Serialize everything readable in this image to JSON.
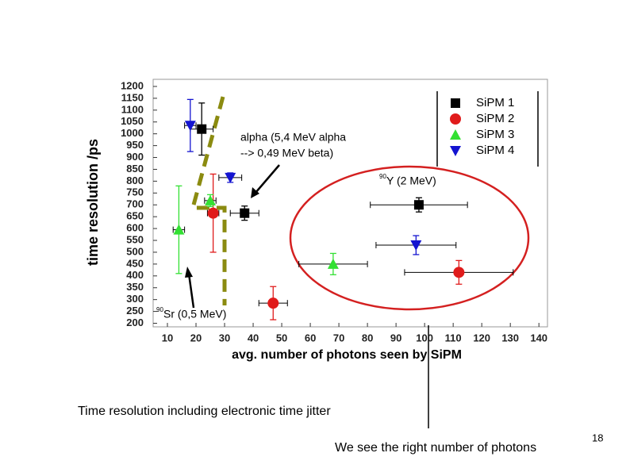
{
  "chart_data": {
    "type": "errorbar-scatter",
    "xlabel": "avg. number of photons seen by SiPM",
    "ylabel": "time resolution /ps",
    "xlim": [
      5,
      143
    ],
    "ylim": [
      185,
      1230
    ],
    "xticks": [
      10,
      20,
      30,
      40,
      50,
      60,
      70,
      80,
      90,
      100,
      110,
      120,
      130,
      140
    ],
    "yticks": [
      200,
      250,
      300,
      350,
      400,
      450,
      500,
      550,
      600,
      650,
      700,
      750,
      800,
      850,
      900,
      950,
      1000,
      1050,
      1100,
      1150,
      1200
    ],
    "series": [
      {
        "name": "SiPM 1",
        "color": "#000000",
        "marker": "square",
        "x": [
          22,
          37,
          98
        ],
        "xerr": [
          4,
          5,
          17
        ],
        "values": [
          1020,
          665,
          700
        ],
        "yerr": [
          110,
          30,
          30
        ]
      },
      {
        "name": "SiPM 2",
        "color": "#e01b1b",
        "marker": "circle",
        "x": [
          26,
          47,
          112
        ],
        "xerr": [
          2,
          5,
          19
        ],
        "values": [
          665,
          285,
          415
        ],
        "yerr": [
          165,
          70,
          50
        ]
      },
      {
        "name": "SiPM 3",
        "color": "#33e033",
        "marker": "triangle-up",
        "x": [
          14,
          25,
          68
        ],
        "xerr": [
          2,
          2,
          12
        ],
        "values": [
          595,
          718,
          450
        ],
        "yerr": [
          185,
          25,
          45
        ]
      },
      {
        "name": "SiPM 4",
        "color": "#1414d0",
        "marker": "triangle-down",
        "x": [
          18,
          32,
          97
        ],
        "xerr": [
          2,
          4,
          14
        ],
        "values": [
          1035,
          815,
          530
        ],
        "yerr": [
          110,
          20,
          40
        ]
      }
    ],
    "annotations": [
      {
        "lines": [
          "alpha (5,4 MeV alpha",
          "--> 0,49 MeV beta)"
        ]
      },
      {
        "sup": "90",
        "text": "Y (2 MeV)"
      },
      {
        "sup": "90",
        "text": "Sr (0,5 MeV)"
      }
    ]
  },
  "slide": {
    "caption": "Time resolution including electronic time jitter",
    "note": "We see the right number of photons",
    "page_number": "18"
  }
}
